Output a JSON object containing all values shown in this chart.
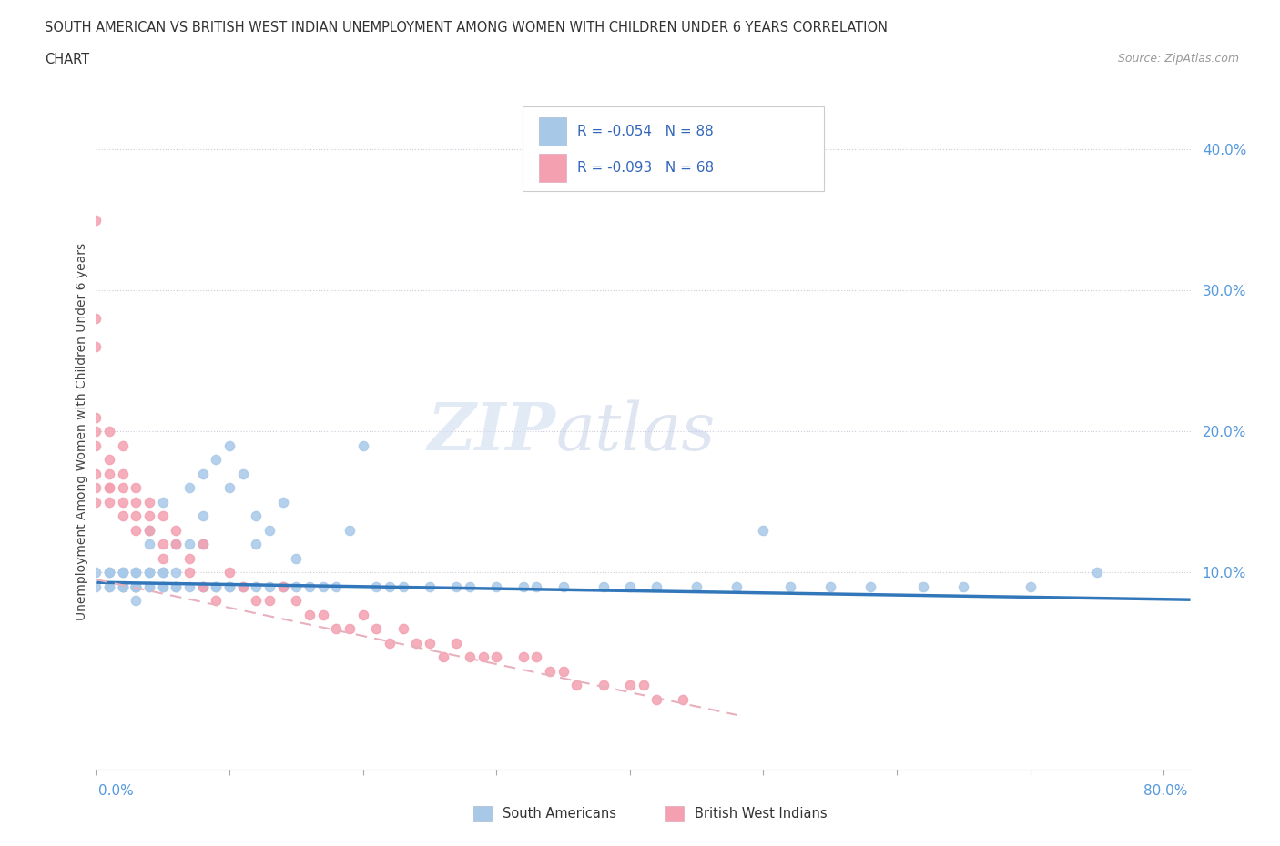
{
  "title_line1": "SOUTH AMERICAN VS BRITISH WEST INDIAN UNEMPLOYMENT AMONG WOMEN WITH CHILDREN UNDER 6 YEARS CORRELATION",
  "title_line2": "CHART",
  "source": "Source: ZipAtlas.com",
  "ylabel": "Unemployment Among Women with Children Under 6 years",
  "xlim": [
    0.0,
    0.82
  ],
  "ylim": [
    -0.04,
    0.44
  ],
  "legend_sa": "South Americans",
  "legend_bwi": "British West Indians",
  "r_sa": -0.054,
  "n_sa": 88,
  "r_bwi": -0.093,
  "n_bwi": 68,
  "color_sa": "#a8c8e8",
  "color_bwi": "#f4a0b0",
  "trendline_sa_color": "#3377bb",
  "trendline_bwi_color": "#e8b0bc",
  "watermark_zip": "ZIP",
  "watermark_atlas": "atlas",
  "sa_x": [
    0.0,
    0.0,
    0.01,
    0.01,
    0.01,
    0.01,
    0.02,
    0.02,
    0.02,
    0.02,
    0.02,
    0.03,
    0.03,
    0.03,
    0.03,
    0.03,
    0.03,
    0.03,
    0.03,
    0.04,
    0.04,
    0.04,
    0.04,
    0.04,
    0.04,
    0.05,
    0.05,
    0.05,
    0.05,
    0.05,
    0.06,
    0.06,
    0.06,
    0.06,
    0.07,
    0.07,
    0.07,
    0.08,
    0.08,
    0.08,
    0.08,
    0.08,
    0.09,
    0.09,
    0.09,
    0.1,
    0.1,
    0.1,
    0.1,
    0.11,
    0.11,
    0.12,
    0.12,
    0.12,
    0.13,
    0.13,
    0.14,
    0.14,
    0.15,
    0.15,
    0.16,
    0.17,
    0.18,
    0.19,
    0.2,
    0.21,
    0.22,
    0.23,
    0.25,
    0.27,
    0.28,
    0.3,
    0.32,
    0.33,
    0.35,
    0.38,
    0.4,
    0.42,
    0.45,
    0.48,
    0.5,
    0.52,
    0.55,
    0.58,
    0.62,
    0.65,
    0.7,
    0.75
  ],
  "sa_y": [
    0.09,
    0.1,
    0.09,
    0.1,
    0.09,
    0.1,
    0.09,
    0.1,
    0.09,
    0.09,
    0.1,
    0.09,
    0.1,
    0.09,
    0.08,
    0.09,
    0.09,
    0.1,
    0.09,
    0.13,
    0.12,
    0.1,
    0.09,
    0.1,
    0.09,
    0.15,
    0.1,
    0.09,
    0.1,
    0.09,
    0.1,
    0.12,
    0.09,
    0.09,
    0.16,
    0.12,
    0.09,
    0.17,
    0.14,
    0.09,
    0.12,
    0.09,
    0.18,
    0.09,
    0.09,
    0.19,
    0.16,
    0.09,
    0.09,
    0.17,
    0.09,
    0.14,
    0.12,
    0.09,
    0.13,
    0.09,
    0.15,
    0.09,
    0.11,
    0.09,
    0.09,
    0.09,
    0.09,
    0.13,
    0.19,
    0.09,
    0.09,
    0.09,
    0.09,
    0.09,
    0.09,
    0.09,
    0.09,
    0.09,
    0.09,
    0.09,
    0.09,
    0.09,
    0.09,
    0.09,
    0.13,
    0.09,
    0.09,
    0.09,
    0.09,
    0.09,
    0.09,
    0.1
  ],
  "bwi_x": [
    0.0,
    0.0,
    0.0,
    0.0,
    0.0,
    0.0,
    0.0,
    0.0,
    0.0,
    0.01,
    0.01,
    0.01,
    0.01,
    0.01,
    0.01,
    0.02,
    0.02,
    0.02,
    0.02,
    0.02,
    0.03,
    0.03,
    0.03,
    0.03,
    0.04,
    0.04,
    0.04,
    0.05,
    0.05,
    0.05,
    0.06,
    0.06,
    0.07,
    0.07,
    0.08,
    0.08,
    0.09,
    0.1,
    0.11,
    0.12,
    0.13,
    0.14,
    0.15,
    0.16,
    0.17,
    0.18,
    0.19,
    0.2,
    0.21,
    0.22,
    0.23,
    0.24,
    0.25,
    0.26,
    0.27,
    0.28,
    0.29,
    0.3,
    0.32,
    0.33,
    0.34,
    0.35,
    0.36,
    0.38,
    0.4,
    0.41,
    0.42,
    0.44
  ],
  "bwi_y": [
    0.35,
    0.28,
    0.26,
    0.21,
    0.2,
    0.19,
    0.17,
    0.16,
    0.15,
    0.2,
    0.18,
    0.17,
    0.16,
    0.15,
    0.16,
    0.19,
    0.17,
    0.16,
    0.15,
    0.14,
    0.16,
    0.15,
    0.14,
    0.13,
    0.15,
    0.13,
    0.14,
    0.14,
    0.12,
    0.11,
    0.13,
    0.12,
    0.11,
    0.1,
    0.09,
    0.12,
    0.08,
    0.1,
    0.09,
    0.08,
    0.08,
    0.09,
    0.08,
    0.07,
    0.07,
    0.06,
    0.06,
    0.07,
    0.06,
    0.05,
    0.06,
    0.05,
    0.05,
    0.04,
    0.05,
    0.04,
    0.04,
    0.04,
    0.04,
    0.04,
    0.03,
    0.03,
    0.02,
    0.02,
    0.02,
    0.02,
    0.01,
    0.01
  ]
}
